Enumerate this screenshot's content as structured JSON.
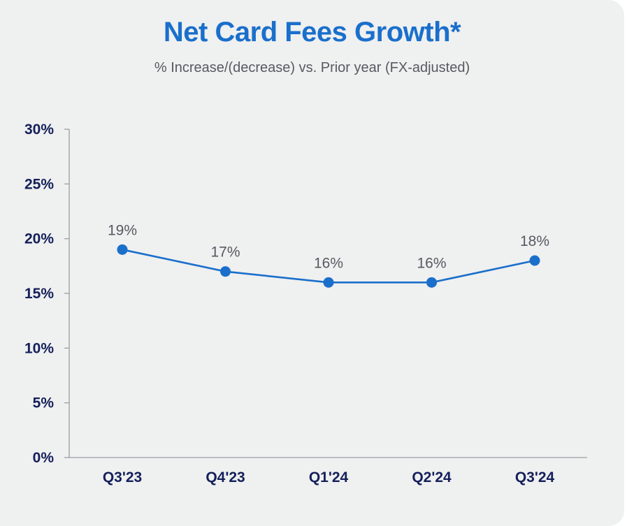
{
  "chart_data": {
    "type": "line",
    "title": "Net Card Fees Growth*",
    "subtitle": "% Increase/(decrease) vs. Prior year (FX-adjusted)",
    "categories": [
      "Q3'23",
      "Q4'23",
      "Q1'24",
      "Q2'24",
      "Q3'24"
    ],
    "series": [
      {
        "values": [
          19,
          17,
          16,
          16,
          18
        ],
        "value_labels": [
          "19%",
          "17%",
          "16%",
          "16%",
          "18%"
        ],
        "color": "#1a6fcb"
      }
    ],
    "ylim": [
      0,
      30
    ],
    "yticks": [
      0,
      5,
      10,
      15,
      20,
      25,
      30
    ],
    "ytick_labels": [
      "0%",
      "5%",
      "10%",
      "15%",
      "20%",
      "25%",
      "30%"
    ],
    "grid": false,
    "legend": "none"
  },
  "colors": {
    "title": "#1a6fcb",
    "line": "#1a6fcb",
    "axis": "#9a9ea2",
    "tick_text": "#14205a",
    "background": "#eff0f0"
  }
}
